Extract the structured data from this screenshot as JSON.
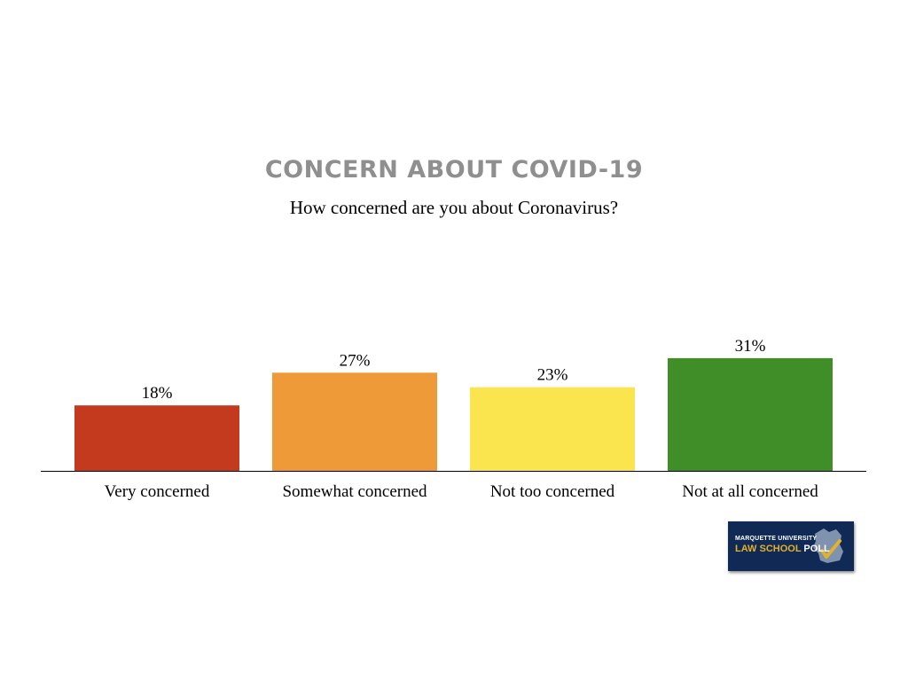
{
  "slide": {
    "title": "CONCERN ABOUT COVID-19",
    "subtitle": "How concerned are you about Coronavirus?"
  },
  "chart_data": {
    "type": "bar",
    "title": "CONCERN ABOUT COVID-19",
    "subtitle": "How concerned are you about Coronavirus?",
    "categories": [
      "Very concerned",
      "Somewhat concerned",
      "Not too concerned",
      "Not at all concerned"
    ],
    "values": [
      18,
      27,
      23,
      31
    ],
    "value_labels": [
      "18%",
      "27%",
      "23%",
      "31%"
    ],
    "colors": [
      "#c33a1f",
      "#ef9a38",
      "#fbe54f",
      "#3f8e27"
    ],
    "xlabel": "",
    "ylabel": "",
    "ylim": [
      0,
      31
    ],
    "grid": false,
    "legend": "none"
  },
  "logo": {
    "line1": "MARQUETTE UNIVERSITY",
    "line2_a": "LAW SCHOOL",
    "line2_b": "POLL",
    "icon": "wisconsin-checkmark-icon",
    "background": "#102a55",
    "accent": "#e3b12b"
  }
}
